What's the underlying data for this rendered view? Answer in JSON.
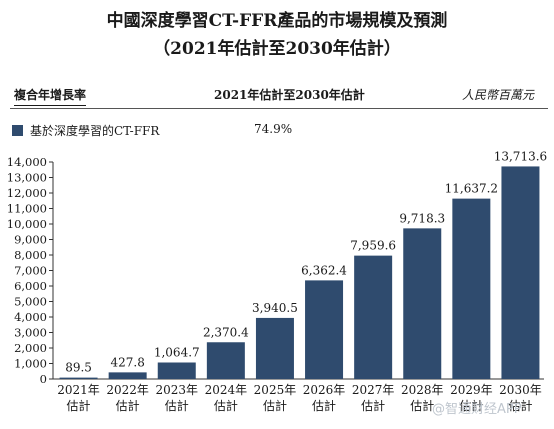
{
  "header": {
    "title_line1": "中國深度學習CT-FFR產品的市場規模及預測",
    "title_line2": "（2021年估計至2030年估計）",
    "cagr_label": "複合年增長率",
    "period_label": "2021年估計至2030年估計",
    "unit_label": "人民幣百萬元"
  },
  "legend": {
    "series_name": "基於深度學習的CT-FFR",
    "cagr_value": "74.9%",
    "color": "#2f4b6e"
  },
  "watermark": "@智通财经APP",
  "chart_data": {
    "type": "bar",
    "categories": [
      [
        "2021年",
        "估計"
      ],
      [
        "2022年",
        "估計"
      ],
      [
        "2023年",
        "估計"
      ],
      [
        "2024年",
        "估計"
      ],
      [
        "2025年",
        "估計"
      ],
      [
        "2026年",
        "估計"
      ],
      [
        "2027年",
        "估計"
      ],
      [
        "2028年",
        "估計"
      ],
      [
        "2029年",
        "估計"
      ],
      [
        "2030年",
        "估計"
      ]
    ],
    "series": [
      {
        "name": "基於深度學習的CT-FFR",
        "values": [
          89.5,
          427.8,
          1064.7,
          2370.4,
          3940.5,
          6362.4,
          7959.6,
          9718.3,
          11637.2,
          13713.6
        ],
        "labels": [
          "89.5",
          "427.8",
          "1,064.7",
          "2,370.4",
          "3,940.5",
          "6,362.4",
          "7,959.6",
          "9,718.3",
          "11,637.2",
          "13,713.6"
        ]
      }
    ],
    "ylim": [
      0,
      14000
    ],
    "yticks": [
      0,
      1000,
      2000,
      3000,
      4000,
      5000,
      6000,
      7000,
      8000,
      9000,
      10000,
      11000,
      12000,
      13000,
      14000
    ],
    "ytick_labels": [
      "0",
      "1,000",
      "2,000",
      "3,000",
      "4,000",
      "5,000",
      "6,000",
      "7,000",
      "8,000",
      "9,000",
      "10,000",
      "11,000",
      "12,000",
      "13,000",
      "14,000"
    ],
    "bar_color": "#2f4b6e",
    "grid": false
  }
}
